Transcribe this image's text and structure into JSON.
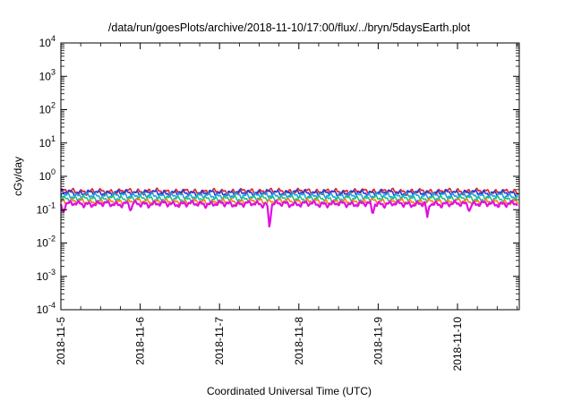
{
  "chart_data": {
    "type": "line",
    "title": "/data/run/goesPlots/archive/2018-11-10/17:00/flux/../bryn/5daysEarth.plot",
    "xlabel": "Coordinated Universal Time (UTC)",
    "ylabel": "cGy/day",
    "yscale": "log",
    "ylim": [
      0.0001,
      10000
    ],
    "xlim": [
      "2018-11-05",
      "2018-11-10 17:00"
    ],
    "grid": false,
    "xticks": [
      "2018-11-5",
      "2018-11-6",
      "2018-11-7",
      "2018-11-8",
      "2018-11-9",
      "2018-11-10"
    ],
    "yticks": [
      {
        "base": "10",
        "exp": "4"
      },
      {
        "base": "10",
        "exp": "3"
      },
      {
        "base": "10",
        "exp": "2"
      },
      {
        "base": "10",
        "exp": "1"
      },
      {
        "base": "10",
        "exp": "0"
      },
      {
        "base": "10",
        "exp": "-1"
      },
      {
        "base": "10",
        "exp": "-2"
      },
      {
        "base": "10",
        "exp": "-3"
      },
      {
        "base": "10",
        "exp": "-4"
      }
    ],
    "x_days": [
      0,
      0.5,
      1,
      1.5,
      2,
      2.5,
      3,
      3.5,
      4,
      4.5,
      5,
      5.5,
      5.7
    ],
    "series": [
      {
        "color": "#e0202a",
        "values": [
          0.36,
          0.35,
          0.36,
          0.35,
          0.35,
          0.36,
          0.36,
          0.35,
          0.36,
          0.35,
          0.36,
          0.35,
          0.34
        ]
      },
      {
        "color": "#2b3bd6",
        "values": [
          0.33,
          0.32,
          0.33,
          0.32,
          0.32,
          0.33,
          0.33,
          0.32,
          0.33,
          0.32,
          0.33,
          0.32,
          0.31
        ]
      },
      {
        "color": "#1fa0e8",
        "values": [
          0.27,
          0.26,
          0.27,
          0.26,
          0.26,
          0.27,
          0.27,
          0.26,
          0.27,
          0.26,
          0.27,
          0.26,
          0.26
        ]
      },
      {
        "color": "#20c080",
        "values": [
          0.22,
          0.21,
          0.22,
          0.21,
          0.21,
          0.22,
          0.22,
          0.21,
          0.22,
          0.21,
          0.22,
          0.21,
          0.21
        ]
      },
      {
        "color": "#f08020",
        "values": [
          0.18,
          0.17,
          0.18,
          0.17,
          0.17,
          0.18,
          0.18,
          0.17,
          0.18,
          0.17,
          0.18,
          0.17,
          0.17
        ]
      },
      {
        "color": "#e010e0",
        "values": [
          0.15,
          0.15,
          0.15,
          0.15,
          0.15,
          0.15,
          0.15,
          0.15,
          0.15,
          0.15,
          0.15,
          0.15,
          0.15
        ],
        "dips": [
          [
            0.03,
            0.08
          ],
          [
            0.88,
            0.09
          ],
          [
            2.63,
            0.028
          ],
          [
            3.93,
            0.07
          ],
          [
            4.62,
            0.06
          ],
          [
            5.15,
            0.09
          ]
        ]
      }
    ]
  }
}
